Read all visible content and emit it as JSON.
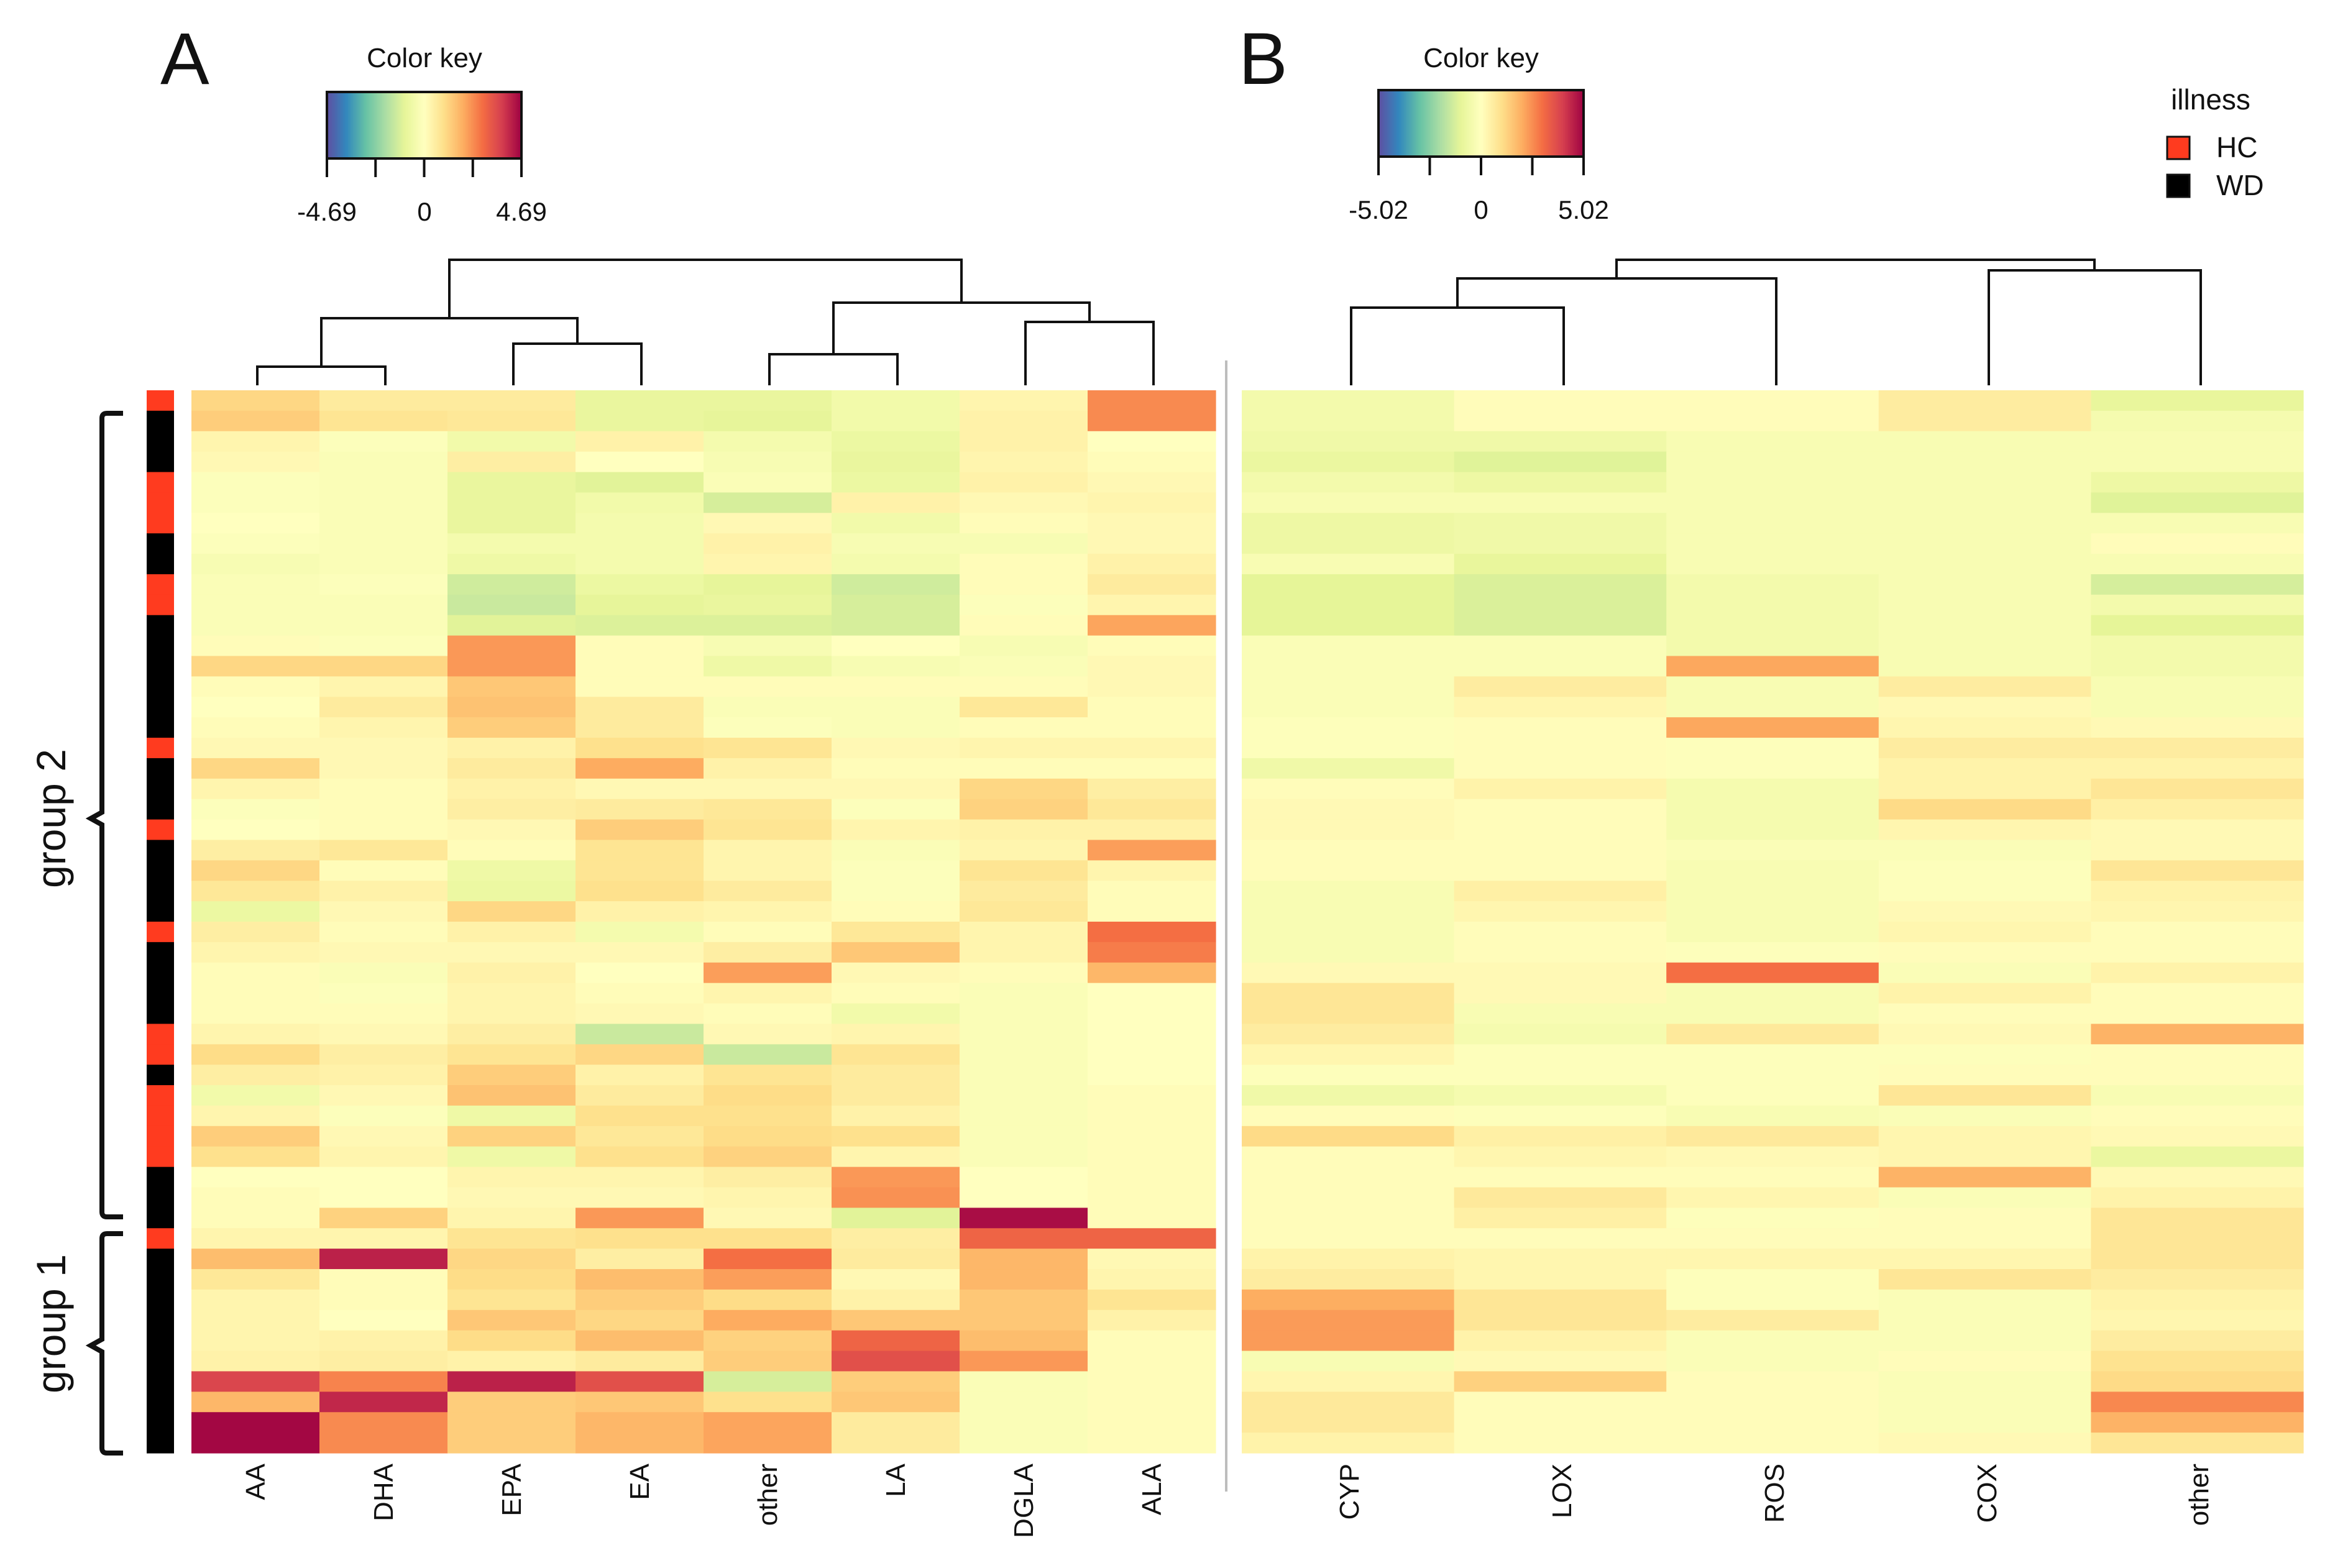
{
  "figure": {
    "legend": {
      "title": "illness",
      "items": [
        {
          "label": "HC",
          "color": "#ff3b1f"
        },
        {
          "label": "WD",
          "color": "#000000"
        }
      ]
    },
    "groups": [
      {
        "label": "group 2"
      },
      {
        "label": "group 1"
      }
    ],
    "palette": [
      "#5e4fa2",
      "#3288bd",
      "#66c2a5",
      "#abdda4",
      "#e6f598",
      "#ffffbf",
      "#fee08b",
      "#fdae61",
      "#f46d43",
      "#d53e4f",
      "#9e0142"
    ]
  },
  "chart_data": [
    {
      "type": "heatmap",
      "panel": "A",
      "title": "A",
      "color_key": {
        "title": "Color key",
        "min": -4.69,
        "max": 4.69,
        "tick_labels": [
          "-4.69",
          "0",
          "4.69"
        ]
      },
      "columns": [
        "AA",
        "DHA",
        "EPA",
        "EA",
        "other",
        "LA",
        "DGLA",
        "ALA"
      ],
      "row_illness": [
        "HC",
        "WD",
        "WD",
        "WD",
        "HC",
        "HC",
        "HC",
        "WD",
        "WD",
        "HC",
        "HC",
        "WD",
        "WD",
        "WD",
        "WD",
        "WD",
        "WD",
        "HC",
        "WD",
        "WD",
        "WD",
        "HC",
        "WD",
        "WD",
        "WD",
        "WD",
        "HC",
        "WD",
        "WD",
        "WD",
        "WD",
        "HC",
        "HC",
        "WD",
        "HC",
        "HC",
        "HC",
        "HC",
        "WD",
        "WD",
        "WD",
        "HC",
        "WD",
        "WD",
        "WD",
        "WD",
        "WD",
        "WD",
        "WD",
        "WD",
        "WD",
        "WD"
      ],
      "values": [
        [
          1.1,
          0.6,
          0.6,
          -0.8,
          -0.8,
          -0.5,
          0.3,
          2.4
        ],
        [
          1.3,
          0.8,
          0.7,
          -0.8,
          -0.9,
          -0.5,
          0.4,
          2.4
        ],
        [
          0.3,
          -0.1,
          -0.5,
          0.4,
          -0.4,
          -0.7,
          0.4,
          0.0
        ],
        [
          0.2,
          -0.2,
          0.5,
          0.0,
          -0.3,
          -0.8,
          0.3,
          0.1
        ],
        [
          -0.1,
          -0.2,
          -0.8,
          -1.0,
          -0.2,
          -0.7,
          0.4,
          0.2
        ],
        [
          -0.1,
          -0.2,
          -0.8,
          -0.5,
          -1.2,
          0.4,
          0.2,
          0.3
        ],
        [
          0.0,
          -0.2,
          -0.8,
          -0.4,
          0.2,
          -0.5,
          0.1,
          0.2
        ],
        [
          -0.1,
          -0.2,
          -0.4,
          -0.4,
          0.4,
          -0.3,
          -0.3,
          0.2
        ],
        [
          -0.3,
          -0.2,
          -0.6,
          -0.4,
          0.3,
          -0.4,
          0.1,
          0.4
        ],
        [
          -0.2,
          -0.1,
          -1.3,
          -0.7,
          -0.9,
          -1.3,
          0.1,
          0.6
        ],
        [
          -0.2,
          -0.2,
          -1.4,
          -0.9,
          -0.8,
          -1.2,
          -0.1,
          0.3
        ],
        [
          -0.2,
          -0.2,
          -1.0,
          -1.1,
          -1.1,
          -1.2,
          0.1,
          2.0
        ],
        [
          0.1,
          -0.1,
          2.2,
          0.1,
          -0.3,
          0.0,
          -0.3,
          0.1
        ],
        [
          1.1,
          1.1,
          2.2,
          0.1,
          -0.6,
          -0.3,
          -0.2,
          0.2
        ],
        [
          0.1,
          0.3,
          1.4,
          0.1,
          0.1,
          0.1,
          0.1,
          0.2
        ],
        [
          0.0,
          0.6,
          1.5,
          0.6,
          -0.2,
          -0.2,
          0.7,
          0.1
        ],
        [
          0.1,
          0.3,
          1.3,
          0.6,
          -0.1,
          -0.2,
          0.1,
          0.1
        ],
        [
          0.2,
          0.2,
          0.4,
          0.9,
          0.8,
          0.2,
          0.3,
          0.3
        ],
        [
          1.1,
          0.2,
          0.6,
          1.9,
          0.4,
          0.1,
          0.1,
          0.1
        ],
        [
          0.3,
          0.1,
          0.4,
          0.2,
          0.2,
          0.2,
          1.1,
          0.5
        ],
        [
          -0.1,
          0.1,
          0.5,
          0.6,
          0.7,
          -0.1,
          1.2,
          0.7
        ],
        [
          0.0,
          0.1,
          0.2,
          1.3,
          0.8,
          0.3,
          0.4,
          0.4
        ],
        [
          0.5,
          0.7,
          0.1,
          0.8,
          0.3,
          -0.2,
          0.3,
          2.1
        ],
        [
          1.1,
          0.1,
          -0.6,
          0.8,
          0.3,
          -0.1,
          0.8,
          0.3
        ],
        [
          0.7,
          0.4,
          -0.7,
          0.9,
          0.6,
          -0.1,
          0.6,
          0.1
        ],
        [
          -0.7,
          0.2,
          1.1,
          0.4,
          0.3,
          0.1,
          0.7,
          0.1
        ],
        [
          0.5,
          0.1,
          0.4,
          -0.4,
          0.1,
          0.7,
          0.3,
          2.8
        ],
        [
          0.3,
          0.2,
          0.2,
          0.2,
          0.5,
          1.4,
          0.3,
          2.6
        ],
        [
          0.1,
          -0.2,
          0.4,
          0.0,
          2.1,
          0.2,
          0.1,
          1.7
        ],
        [
          0.1,
          -0.1,
          0.3,
          0.1,
          0.3,
          0.1,
          -0.2,
          0.0
        ],
        [
          0.1,
          0.1,
          0.3,
          0.2,
          0.1,
          -0.5,
          -0.2,
          0.0
        ],
        [
          0.3,
          0.2,
          0.5,
          -1.4,
          0.2,
          0.3,
          -0.2,
          0.0
        ],
        [
          1.0,
          0.5,
          0.8,
          1.1,
          -1.4,
          0.8,
          -0.2,
          0.0
        ],
        [
          0.5,
          0.4,
          1.3,
          0.4,
          0.8,
          0.6,
          -0.2,
          0.0
        ],
        [
          -0.5,
          0.2,
          1.5,
          0.6,
          1.0,
          0.6,
          -0.2,
          0.1
        ],
        [
          0.3,
          -0.1,
          -0.6,
          0.9,
          0.9,
          0.4,
          -0.2,
          0.1
        ],
        [
          1.3,
          0.2,
          1.2,
          0.7,
          1.0,
          0.9,
          -0.2,
          0.1
        ],
        [
          0.9,
          0.3,
          -0.6,
          0.9,
          1.2,
          0.3,
          -0.2,
          0.1
        ],
        [
          0.0,
          0.0,
          0.3,
          0.3,
          0.5,
          2.2,
          0.0,
          0.1
        ],
        [
          0.1,
          0.0,
          0.2,
          0.2,
          0.3,
          2.3,
          0.0,
          0.1
        ],
        [
          0.1,
          1.2,
          0.3,
          2.2,
          0.2,
          -1.0,
          4.5,
          0.1
        ],
        [
          0.3,
          0.3,
          0.8,
          0.9,
          0.9,
          0.5,
          3.0,
          3.0
        ],
        [
          1.6,
          4.2,
          1.1,
          0.5,
          2.8,
          0.6,
          1.7,
          0.2
        ],
        [
          0.7,
          0.1,
          1.0,
          1.6,
          2.1,
          0.2,
          1.7,
          0.3
        ],
        [
          0.3,
          0.1,
          0.8,
          1.3,
          1.0,
          0.4,
          1.4,
          0.8
        ],
        [
          0.3,
          0.0,
          1.4,
          1.1,
          1.9,
          1.4,
          1.4,
          0.4
        ],
        [
          0.3,
          0.4,
          1.0,
          1.6,
          1.2,
          3.0,
          1.6,
          0.1
        ],
        [
          0.4,
          0.5,
          0.4,
          0.6,
          1.3,
          3.4,
          2.2,
          0.1
        ],
        [
          3.6,
          2.5,
          4.2,
          3.4,
          -1.2,
          1.3,
          -0.2,
          0.1
        ],
        [
          1.7,
          4.1,
          1.3,
          1.4,
          0.9,
          1.4,
          -0.2,
          0.1
        ],
        [
          4.6,
          2.4,
          1.3,
          1.7,
          2.0,
          0.6,
          -0.2,
          0.1
        ],
        [
          4.6,
          2.4,
          1.3,
          1.7,
          2.0,
          0.6,
          -0.2,
          0.1
        ]
      ],
      "dendrogram": {
        "leaf_order": [
          "AA",
          "DHA",
          "EPA",
          "EA",
          "other",
          "LA",
          "DGLA",
          "ALA"
        ]
      }
    },
    {
      "type": "heatmap",
      "panel": "B",
      "title": "B",
      "color_key": {
        "title": "Color key",
        "min": -5.02,
        "max": 5.02,
        "tick_labels": [
          "-5.02",
          "0",
          "5.02"
        ]
      },
      "columns": [
        "CYP",
        "LOX",
        "ROS",
        "COX",
        "other"
      ],
      "values": [
        [
          -0.5,
          0.1,
          0.1,
          0.6,
          -0.9
        ],
        [
          -0.5,
          0.1,
          0.1,
          0.6,
          -0.4
        ],
        [
          -0.6,
          -0.6,
          -0.3,
          -0.3,
          -0.3
        ],
        [
          -0.8,
          -1.1,
          -0.3,
          -0.3,
          -0.3
        ],
        [
          -0.5,
          -0.7,
          -0.3,
          -0.3,
          -0.7
        ],
        [
          -0.3,
          -0.3,
          -0.3,
          -0.3,
          -1.1
        ],
        [
          -0.7,
          -0.6,
          -0.3,
          -0.3,
          -0.3
        ],
        [
          -0.7,
          -0.6,
          -0.3,
          -0.3,
          0.1
        ],
        [
          -0.3,
          -0.9,
          -0.3,
          -0.3,
          -0.3
        ],
        [
          -1.0,
          -1.2,
          -0.5,
          -0.3,
          -1.3
        ],
        [
          -1.0,
          -1.2,
          -0.5,
          -0.3,
          -0.5
        ],
        [
          -1.0,
          -1.2,
          -0.5,
          -0.3,
          -1.0
        ],
        [
          -0.2,
          -0.2,
          -0.5,
          -0.3,
          -0.5
        ],
        [
          -0.2,
          -0.2,
          2.1,
          -0.3,
          -0.5
        ],
        [
          -0.2,
          0.6,
          -0.3,
          0.6,
          -0.3
        ],
        [
          -0.2,
          0.3,
          -0.3,
          0.2,
          -0.3
        ],
        [
          -0.1,
          0.1,
          2.1,
          0.3,
          0.2
        ],
        [
          -0.1,
          0.1,
          -0.1,
          0.6,
          0.6
        ],
        [
          -0.6,
          0.1,
          -0.1,
          0.4,
          0.4
        ],
        [
          0.1,
          0.4,
          -0.4,
          0.4,
          0.8
        ],
        [
          0.2,
          0.1,
          -0.4,
          1.1,
          0.5
        ],
        [
          0.2,
          0.1,
          -0.4,
          0.3,
          0.2
        ],
        [
          0.1,
          0.1,
          -0.2,
          -0.2,
          0.2
        ],
        [
          0.1,
          0.1,
          -0.3,
          -0.1,
          0.8
        ],
        [
          -0.3,
          0.5,
          -0.3,
          -0.1,
          0.4
        ],
        [
          -0.3,
          0.3,
          -0.3,
          0.2,
          0.3
        ],
        [
          -0.3,
          0.1,
          -0.3,
          0.3,
          0.1
        ],
        [
          -0.3,
          0.1,
          -0.1,
          0.1,
          0.1
        ],
        [
          0.2,
          0.2,
          3.0,
          -0.2,
          0.4
        ],
        [
          0.8,
          0.2,
          -0.3,
          0.4,
          0.1
        ],
        [
          0.8,
          -0.3,
          -0.3,
          0.1,
          0.1
        ],
        [
          0.6,
          -0.4,
          0.7,
          0.2,
          1.9
        ],
        [
          0.3,
          -0.1,
          -0.1,
          -0.1,
          0.1
        ],
        [
          -0.1,
          -0.1,
          -0.1,
          0.1,
          0.1
        ],
        [
          -0.6,
          -0.4,
          -0.1,
          0.8,
          -0.3
        ],
        [
          0.1,
          -0.1,
          -0.3,
          -0.2,
          0.1
        ],
        [
          1.1,
          0.5,
          0.7,
          0.3,
          0.2
        ],
        [
          0.1,
          0.3,
          0.2,
          0.3,
          -0.8
        ],
        [
          0.1,
          0.1,
          0.1,
          1.9,
          0.2
        ],
        [
          0.1,
          0.7,
          0.3,
          -0.2,
          0.4
        ],
        [
          0.1,
          0.5,
          -0.1,
          0.1,
          0.8
        ],
        [
          0.1,
          0.1,
          0.1,
          0.1,
          0.8
        ],
        [
          0.4,
          0.3,
          0.3,
          0.3,
          0.8
        ],
        [
          0.6,
          0.3,
          -0.1,
          0.8,
          0.6
        ],
        [
          2.0,
          0.8,
          -0.1,
          -0.2,
          0.4
        ],
        [
          2.3,
          0.8,
          0.6,
          -0.2,
          0.3
        ],
        [
          2.3,
          0.4,
          -0.2,
          -0.2,
          0.6
        ],
        [
          -0.3,
          0.2,
          -0.2,
          0.1,
          0.9
        ],
        [
          0.3,
          1.3,
          0.1,
          -0.2,
          1.1
        ],
        [
          0.7,
          0.1,
          0.1,
          -0.2,
          2.6
        ],
        [
          0.7,
          0.1,
          0.1,
          -0.2,
          1.9
        ],
        [
          0.4,
          0.1,
          0.1,
          0.2,
          0.8
        ]
      ],
      "dendrogram": {
        "leaf_order": [
          "CYP",
          "LOX",
          "ROS",
          "COX",
          "other"
        ]
      }
    }
  ]
}
